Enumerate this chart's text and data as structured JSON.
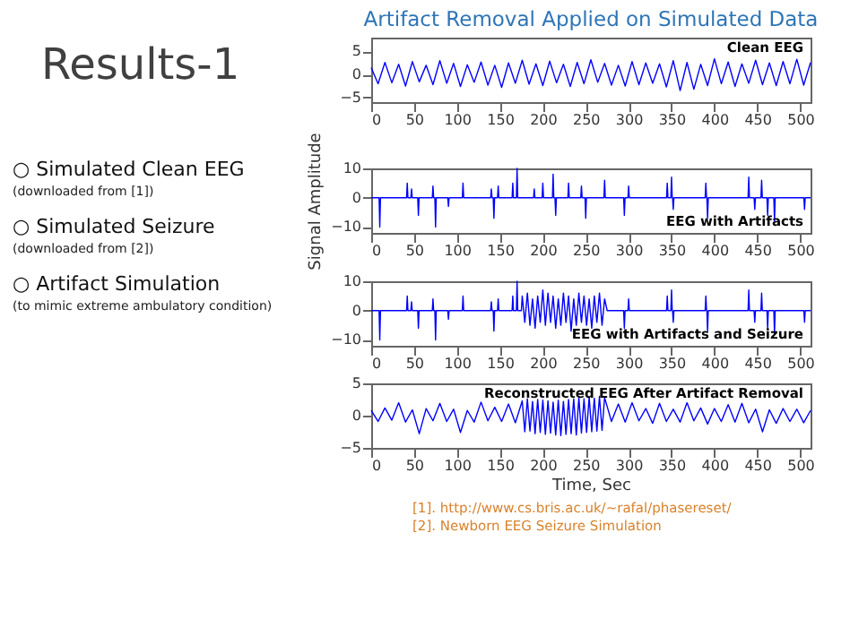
{
  "chart_data": [
    {
      "type": "other",
      "title": "Results-1",
      "annotations": [
        "○ Simulated Clean EEG",
        "(downloaded from [1])",
        "○ Simulated Seizure",
        "(downloaded from [2])",
        "○ Artifact Simulation",
        "(to mimic extreme ambulatory condition)",
        "[1]. http://www.cs.bris.ac.uk/~rafal/phasereset/",
        "[2]. Newborn EEG Seizure Simulation"
      ]
    },
    {
      "type": "line",
      "title": "Artifact Removal Applied on Simulated Data",
      "annotations": [
        "Clean EEG"
      ],
      "xlim": [
        0,
        512
      ],
      "xticks": [
        0,
        50,
        100,
        150,
        200,
        250,
        300,
        350,
        400,
        450,
        500
      ],
      "ylim": [
        -6,
        8
      ],
      "yticks": [
        -5,
        0,
        5
      ],
      "series": [
        {
          "color": "#0000ff",
          "x": [
            0,
            8,
            16,
            24,
            32,
            40,
            48,
            56,
            64,
            72,
            80,
            88,
            96,
            104,
            112,
            120,
            128,
            136,
            144,
            152,
            160,
            168,
            176,
            184,
            192,
            200,
            208,
            216,
            224,
            232,
            240,
            248,
            256,
            264,
            272,
            280,
            288,
            296,
            304,
            312,
            320,
            328,
            336,
            344,
            352,
            360,
            368,
            376,
            384,
            392,
            400,
            408,
            416,
            424,
            432,
            440,
            448,
            456,
            464,
            472,
            480,
            488,
            496,
            504,
            512
          ],
          "values": [
            1.5,
            -2.0,
            2.6,
            -1.8,
            2.2,
            -2.5,
            2.8,
            -1.6,
            2.0,
            -2.2,
            3.0,
            -1.9,
            2.4,
            -2.6,
            2.1,
            -1.7,
            2.7,
            -2.3,
            2.0,
            -2.8,
            2.5,
            -1.9,
            3.1,
            -2.1,
            2.3,
            -2.4,
            2.9,
            -1.8,
            2.2,
            -2.6,
            2.6,
            -2.0,
            3.2,
            -1.7,
            2.4,
            -2.3,
            2.0,
            -2.5,
            2.8,
            -2.2,
            2.5,
            -1.9,
            2.3,
            -2.7,
            3.0,
            -3.5,
            2.6,
            -3.2,
            2.2,
            -2.4,
            3.4,
            -2.0,
            2.7,
            -2.6,
            2.3,
            -1.9,
            3.1,
            -2.2,
            2.5,
            -2.4,
            2.8,
            -2.0,
            3.3,
            -2.3,
            2.6
          ]
        }
      ]
    },
    {
      "type": "line",
      "ylabel": "Signal Amplitude",
      "annotations": [
        "EEG with Artifacts"
      ],
      "xlim": [
        0,
        512
      ],
      "xticks": [
        0,
        50,
        100,
        150,
        200,
        250,
        300,
        350,
        400,
        450,
        500
      ],
      "ylim": [
        -12,
        10
      ],
      "yticks": [
        -10,
        0,
        10
      ],
      "series": [
        {
          "color": "#0000ff",
          "x": [
            0,
            9.2,
            10,
            10.8,
            41.2,
            42,
            42.8,
            46.2,
            47,
            47.8,
            54.2,
            55,
            55.8,
            71.2,
            72,
            72.8,
            74.2,
            75,
            75.8,
            89.2,
            90,
            90.8,
            106.2,
            107,
            107.8,
            139.2,
            140,
            140.8,
            142.2,
            143,
            143.8,
            147.2,
            148,
            148.8,
            164.2,
            165,
            165.8,
            169.2,
            170,
            170.8,
            189.2,
            190,
            190.8,
            199.2,
            200,
            200.8,
            211.2,
            212,
            212.8,
            214.2,
            215,
            215.8,
            229.2,
            230,
            230.8,
            244.2,
            245,
            245.8,
            249.2,
            250,
            250.8,
            271.2,
            272,
            272.8,
            294.2,
            295,
            295.8,
            299.2,
            300,
            300.8,
            344.2,
            345,
            345.8,
            349.2,
            350,
            350.8,
            351.2,
            352,
            352.8,
            389.2,
            390,
            390.8,
            391.2,
            392,
            392.8,
            439.2,
            440,
            440.8,
            446.2,
            447,
            447.8,
            454.2,
            455,
            455.8,
            461.2,
            462,
            462.8,
            469.2,
            470,
            470.8,
            504.2,
            505,
            505.8,
            512
          ],
          "values": [
            0,
            0,
            -10,
            0,
            0,
            5,
            0,
            0,
            3,
            0,
            0,
            -6,
            0,
            0,
            4,
            0,
            0,
            -10,
            0,
            0,
            -3,
            0,
            0,
            5,
            0,
            0,
            3,
            0,
            0,
            -7,
            0,
            0,
            4,
            0,
            0,
            5,
            0,
            0,
            10,
            0,
            0,
            3,
            0,
            0,
            5,
            0,
            0,
            8,
            0,
            0,
            -6,
            0,
            0,
            5,
            0,
            0,
            4,
            0,
            0,
            -7,
            0,
            0,
            6,
            0,
            0,
            -6,
            0,
            0,
            4,
            0,
            0,
            5,
            0,
            0,
            7,
            0,
            0,
            -4,
            0,
            0,
            5,
            0,
            0,
            -7,
            0,
            0,
            7,
            0,
            0,
            -4,
            0,
            0,
            6,
            0,
            0,
            -6,
            0,
            0,
            -8,
            0,
            0,
            -4,
            0,
            0
          ]
        }
      ]
    },
    {
      "type": "line",
      "annotations": [
        "EEG with Artifacts and Seizure"
      ],
      "xlim": [
        0,
        512
      ],
      "xticks": [
        0,
        50,
        100,
        150,
        200,
        250,
        300,
        350,
        400,
        450,
        500
      ],
      "ylim": [
        -12,
        10
      ],
      "yticks": [
        -10,
        0,
        10
      ],
      "series": [
        {
          "color": "#0000ff",
          "x": [
            0,
            9.2,
            10,
            10.8,
            41.2,
            42,
            42.8,
            46.2,
            47,
            47.8,
            54.2,
            55,
            55.8,
            71.2,
            72,
            72.8,
            74.2,
            75,
            75.8,
            89.2,
            90,
            90.8,
            106.2,
            107,
            107.8,
            139.2,
            140,
            140.8,
            142.2,
            143,
            143.8,
            147.2,
            148,
            148.8,
            164.2,
            165,
            165.8,
            169.2,
            170,
            170.8,
            175,
            176,
            179,
            182,
            185,
            188,
            191,
            194,
            197,
            200,
            203,
            206,
            209,
            212,
            215,
            218,
            221,
            224,
            227,
            230,
            233,
            236,
            239,
            242,
            245,
            248,
            251,
            254,
            257,
            260,
            263,
            266,
            269,
            272,
            275,
            294.2,
            295,
            295.8,
            299.2,
            300,
            300.8,
            344.2,
            345,
            345.8,
            349.2,
            350,
            350.8,
            351.2,
            352,
            352.8,
            389.2,
            390,
            390.8,
            391.2,
            392,
            392.8,
            439.2,
            440,
            440.8,
            446.2,
            447,
            447.8,
            454.2,
            455,
            455.8,
            461.2,
            462,
            462.8,
            469.2,
            470,
            470.8,
            504.2,
            505,
            505.8,
            512
          ],
          "values": [
            0,
            0,
            -10,
            0,
            0,
            5,
            0,
            0,
            3,
            0,
            0,
            -6,
            0,
            0,
            4,
            0,
            0,
            -10,
            0,
            0,
            -3,
            0,
            0,
            5,
            0,
            0,
            3,
            0,
            0,
            -7,
            0,
            0,
            4,
            0,
            0,
            5,
            0,
            0,
            10,
            0,
            0,
            5,
            -4,
            6,
            -5,
            4,
            -6,
            5,
            -4,
            7,
            -5,
            6,
            -4,
            5,
            -6,
            4,
            -5,
            6,
            -4,
            5,
            -7,
            4,
            -5,
            6,
            -4,
            5,
            -5,
            4,
            -6,
            5,
            -4,
            6,
            -5,
            4,
            0,
            0,
            -6,
            0,
            0,
            4,
            0,
            0,
            5,
            0,
            0,
            7,
            0,
            0,
            -4,
            0,
            0,
            5,
            0,
            0,
            -7,
            0,
            0,
            7,
            0,
            0,
            -4,
            0,
            0,
            6,
            0,
            0,
            -6,
            0,
            0,
            -8,
            0,
            0,
            -4,
            0,
            0
          ]
        }
      ]
    },
    {
      "type": "line",
      "xlabel": "Time, Sec",
      "annotations": [
        "Reconstructed EEG After Artifact Removal"
      ],
      "xlim": [
        0,
        512
      ],
      "xticks": [
        0,
        50,
        100,
        150,
        200,
        250,
        300,
        350,
        400,
        450,
        500
      ],
      "ylim": [
        -5,
        5
      ],
      "yticks": [
        -5,
        0,
        5
      ],
      "series": [
        {
          "color": "#0000ff",
          "x": [
            0,
            8,
            16,
            24,
            32,
            40,
            48,
            56,
            64,
            72,
            80,
            88,
            96,
            104,
            112,
            120,
            128,
            136,
            144,
            152,
            160,
            168,
            176,
            179,
            182,
            185,
            188,
            191,
            194,
            197,
            200,
            203,
            206,
            209,
            212,
            215,
            218,
            221,
            224,
            227,
            230,
            233,
            236,
            239,
            242,
            245,
            248,
            251,
            254,
            257,
            260,
            263,
            266,
            269,
            272,
            280,
            288,
            296,
            304,
            312,
            320,
            328,
            336,
            344,
            352,
            360,
            368,
            376,
            384,
            392,
            400,
            408,
            416,
            424,
            432,
            440,
            448,
            456,
            464,
            472,
            480,
            488,
            496,
            504,
            512
          ],
          "values": [
            0.8,
            -0.9,
            1.2,
            -0.7,
            2.0,
            -1.0,
            0.9,
            -2.8,
            1.1,
            -0.8,
            1.9,
            -0.9,
            1.0,
            -2.6,
            0.8,
            -1.0,
            2.1,
            -0.8,
            1.3,
            -0.9,
            1.8,
            -1.1,
            2.3,
            -2.5,
            2.6,
            -2.4,
            2.2,
            -2.8,
            2.5,
            -2.6,
            2.4,
            -2.9,
            2.3,
            -2.7,
            2.1,
            -3.0,
            2.4,
            -3.1,
            2.2,
            -2.9,
            2.5,
            -2.8,
            2.6,
            -3.0,
            2.8,
            -2.7,
            2.6,
            -2.6,
            2.9,
            -2.5,
            2.7,
            -2.4,
            3.0,
            -2.3,
            2.8,
            -0.9,
            1.8,
            -1.0,
            2.0,
            -0.8,
            1.1,
            -1.2,
            1.9,
            -0.9,
            1.0,
            -1.0,
            2.0,
            -0.8,
            1.2,
            -1.3,
            1.1,
            -0.9,
            1.7,
            -1.0,
            1.9,
            -1.1,
            1.0,
            -2.5,
            0.9,
            -1.2,
            1.1,
            -0.9,
            1.0,
            -1.1,
            0.8
          ]
        }
      ]
    }
  ]
}
